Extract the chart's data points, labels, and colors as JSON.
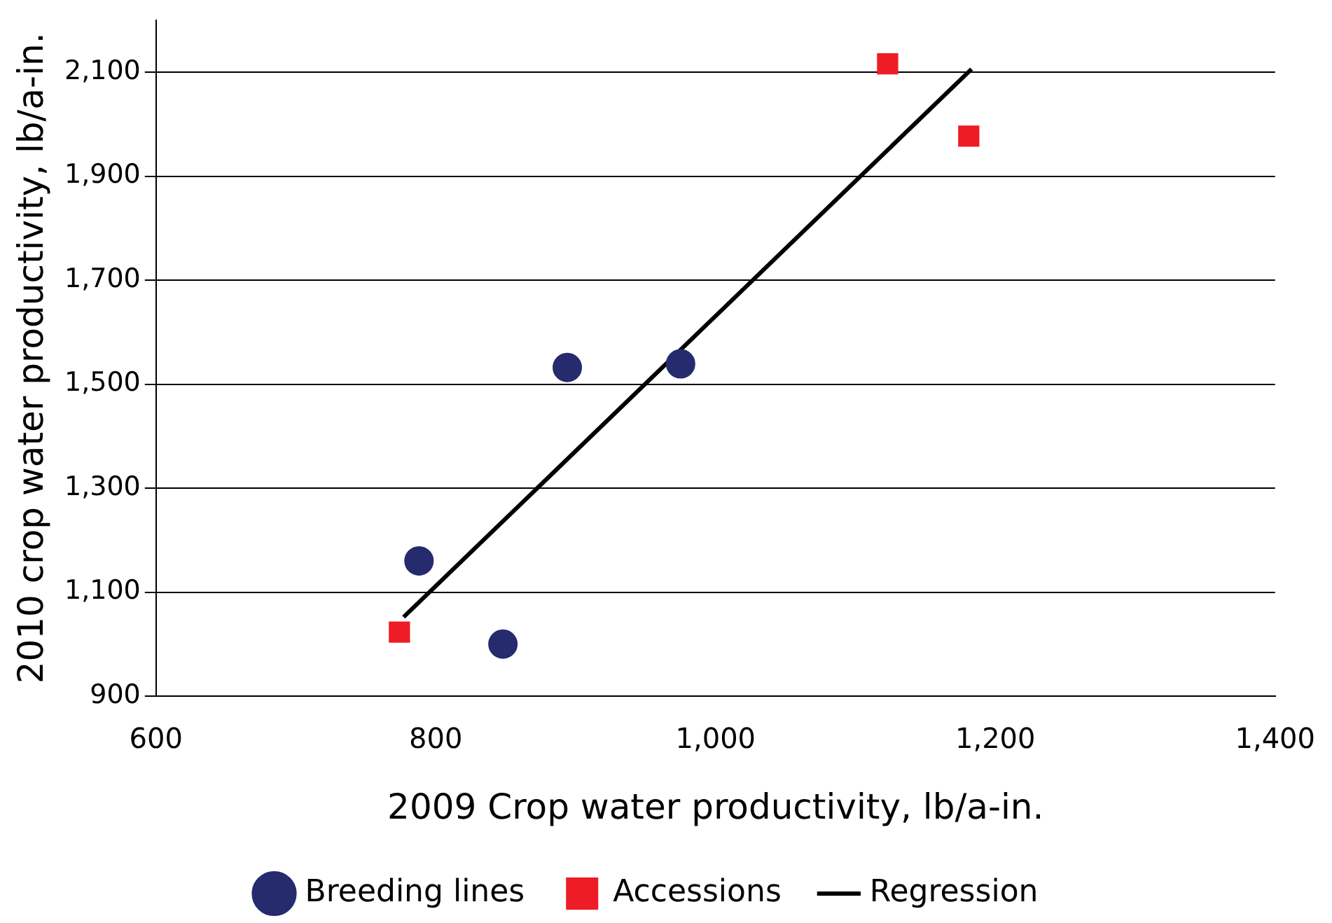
{
  "chart_data": {
    "type": "scatter",
    "xlabel": "2009 Crop water productivity, lb/a-in.",
    "ylabel": "2010 crop water productivity, lb/a-in.",
    "xlim": [
      600,
      1400
    ],
    "xticks": [
      {
        "value": 600,
        "label": "600"
      },
      {
        "value": 800,
        "label": "800"
      },
      {
        "value": 1000,
        "label": "1,000"
      },
      {
        "value": 1200,
        "label": "1,200"
      },
      {
        "value": 1400,
        "label": "1,400"
      }
    ],
    "ylim": [
      900,
      2200
    ],
    "yticks": [
      {
        "value": 900,
        "label": "900"
      },
      {
        "value": 1100,
        "label": "1,100"
      },
      {
        "value": 1300,
        "label": "1,300"
      },
      {
        "value": 1500,
        "label": "1,500"
      },
      {
        "value": 1700,
        "label": "1,700"
      },
      {
        "value": 1900,
        "label": "1,900"
      },
      {
        "value": 2100,
        "label": "2,100"
      }
    ],
    "grid": "y",
    "legend": "bottom",
    "series": [
      {
        "name": "Breeding lines",
        "color": "#262b6e",
        "marker": "circle",
        "x": [
          788,
          848,
          894,
          975
        ],
        "values": [
          1160,
          1000,
          1532,
          1539
        ]
      },
      {
        "name": "Accessions",
        "color": "#ee1c25",
        "marker": "square",
        "x": [
          774,
          1123,
          1181
        ],
        "values": [
          1023,
          2116,
          1977
        ]
      },
      {
        "name": "Regression",
        "type": "line",
        "color": "#000000",
        "marker": "none",
        "line_style": "solid",
        "x": [
          777,
          1183
        ],
        "values": [
          1052,
          2106
        ]
      }
    ]
  }
}
